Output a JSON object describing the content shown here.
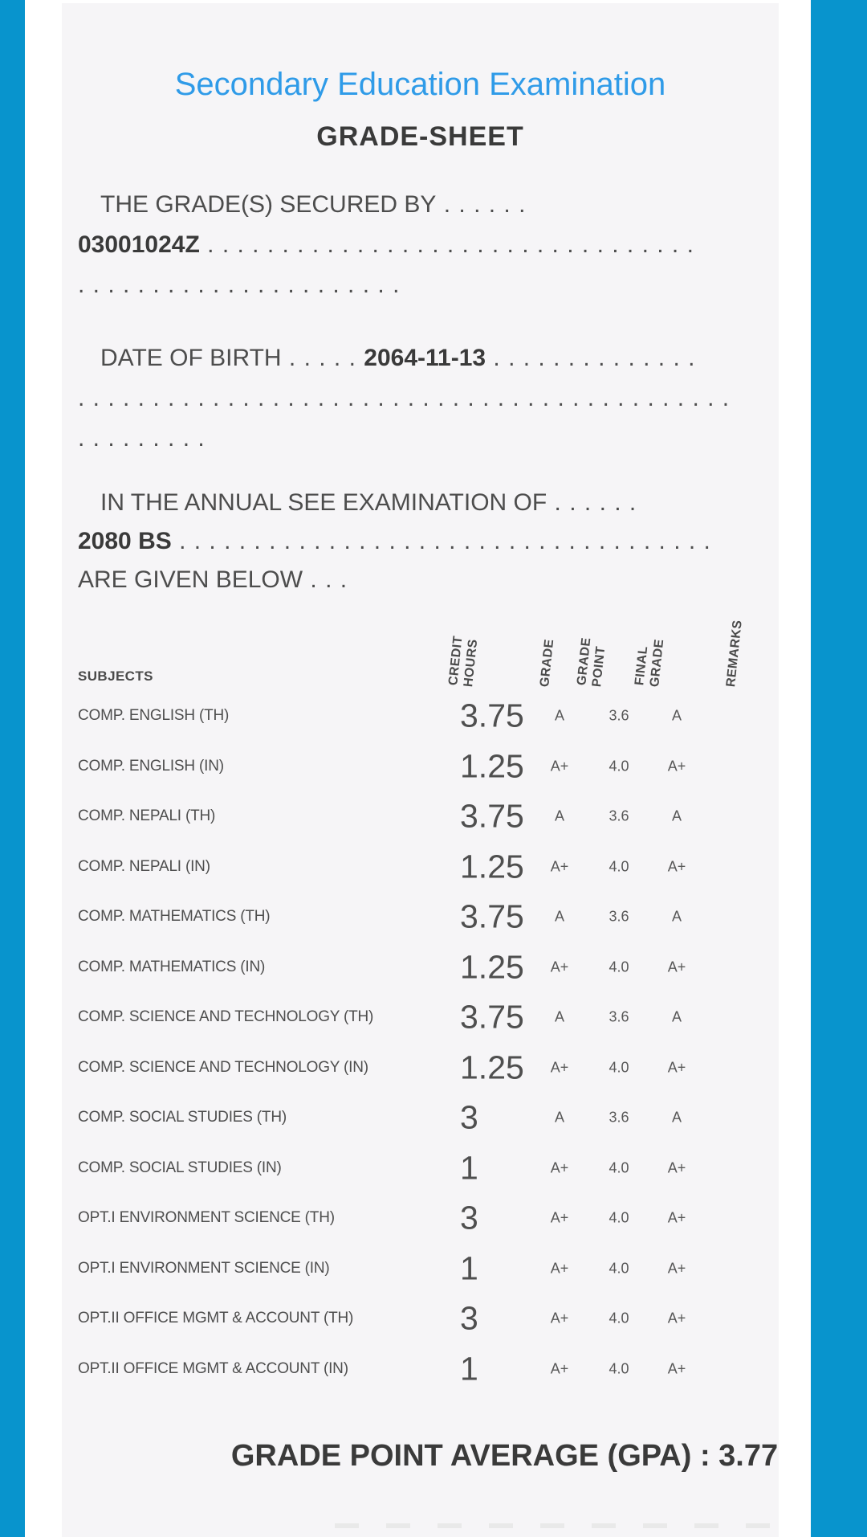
{
  "colors": {
    "accent_blue": "#0894cd",
    "title_blue": "#2f9be8",
    "card_background": "#f6f5f7"
  },
  "header": {
    "title": "Secondary Education Examination",
    "subtitle": "GRADE-SHEET"
  },
  "statements": {
    "grades_secured": {
      "label": "THE GRADE(S) SECURED BY",
      "label_dots": " . . . . . .",
      "value": "03001024Z",
      "value_dots": " . . . . . . . . . . . . . . . . . . . . . . . . . . . . . . . . .",
      "tail_dots": ". . . . . . . . . . . . . . . . . . . . . ."
    },
    "date_of_birth": {
      "label": "DATE OF BIRTH",
      "label_dots": " . . . . . ",
      "value": "2064-11-13",
      "value_dots": " . . . . . . . . . . . . . .",
      "line2_dots": ". . . . . . . . . . . . . . . . . . . . . . . . . . . . . . . . . . . . . . . . . . . .",
      "tail_dots": ". . . . . . . . ."
    },
    "examination": {
      "label": "IN THE ANNUAL SEE EXAMINATION OF",
      "label_dots": " . . . . . .",
      "value": "2080 BS",
      "value_dots": " . . . . . . . . . . . . . . . . . . . . . . . . . . . . . . . . . . . .",
      "closing": "ARE GIVEN BELOW",
      "closing_dots": " . . ."
    }
  },
  "table": {
    "subjects_header": "SUBJECTS",
    "columns": [
      {
        "id": "credit",
        "lines": [
          "CREDIT",
          "HOURS"
        ]
      },
      {
        "id": "grade",
        "lines": [
          "GRADE"
        ]
      },
      {
        "id": "gpoint",
        "lines": [
          "GRADE",
          "POINT"
        ]
      },
      {
        "id": "fgrade",
        "lines": [
          "FINAL",
          "GRADE"
        ]
      },
      {
        "id": "remarks",
        "lines": [
          "REMARKS"
        ]
      }
    ],
    "rows": [
      {
        "subject": "COMP. ENGLISH (TH)",
        "credit": "3.75",
        "grade": "A",
        "grade_point": "3.6",
        "final_grade": "A",
        "remarks": ""
      },
      {
        "subject": "COMP. ENGLISH (IN)",
        "credit": "1.25",
        "grade": "A+",
        "grade_point": "4.0",
        "final_grade": "A+",
        "remarks": ""
      },
      {
        "subject": "COMP. NEPALI (TH)",
        "credit": "3.75",
        "grade": "A",
        "grade_point": "3.6",
        "final_grade": "A",
        "remarks": ""
      },
      {
        "subject": "COMP. NEPALI (IN)",
        "credit": "1.25",
        "grade": "A+",
        "grade_point": "4.0",
        "final_grade": "A+",
        "remarks": ""
      },
      {
        "subject": "COMP. MATHEMATICS (TH)",
        "credit": "3.75",
        "grade": "A",
        "grade_point": "3.6",
        "final_grade": "A",
        "remarks": ""
      },
      {
        "subject": "COMP. MATHEMATICS (IN)",
        "credit": "1.25",
        "grade": "A+",
        "grade_point": "4.0",
        "final_grade": "A+",
        "remarks": ""
      },
      {
        "subject": "COMP. SCIENCE AND TECHNOLOGY (TH)",
        "credit": "3.75",
        "grade": "A",
        "grade_point": "3.6",
        "final_grade": "A",
        "remarks": ""
      },
      {
        "subject": "COMP. SCIENCE AND TECHNOLOGY (IN)",
        "credit": "1.25",
        "grade": "A+",
        "grade_point": "4.0",
        "final_grade": "A+",
        "remarks": ""
      },
      {
        "subject": "COMP. SOCIAL STUDIES (TH)",
        "credit": "3",
        "grade": "A",
        "grade_point": "3.6",
        "final_grade": "A",
        "remarks": ""
      },
      {
        "subject": "COMP. SOCIAL STUDIES (IN)",
        "credit": "1",
        "grade": "A+",
        "grade_point": "4.0",
        "final_grade": "A+",
        "remarks": ""
      },
      {
        "subject": "OPT.I ENVIRONMENT SCIENCE (TH)",
        "credit": "3",
        "grade": "A+",
        "grade_point": "4.0",
        "final_grade": "A+",
        "remarks": ""
      },
      {
        "subject": "OPT.I ENVIRONMENT SCIENCE (IN)",
        "credit": "1",
        "grade": "A+",
        "grade_point": "4.0",
        "final_grade": "A+",
        "remarks": ""
      },
      {
        "subject": "OPT.II OFFICE MGMT & ACCOUNT (TH)",
        "credit": "3",
        "grade": "A+",
        "grade_point": "4.0",
        "final_grade": "A+",
        "remarks": ""
      },
      {
        "subject": "OPT.II OFFICE MGMT & ACCOUNT (IN)",
        "credit": "1",
        "grade": "A+",
        "grade_point": "4.0",
        "final_grade": "A+",
        "remarks": ""
      }
    ]
  },
  "summary": {
    "gpa_label": "GRADE POINT AVERAGE (GPA)",
    "gpa_separator": " : ",
    "gpa_value": "3.77"
  }
}
